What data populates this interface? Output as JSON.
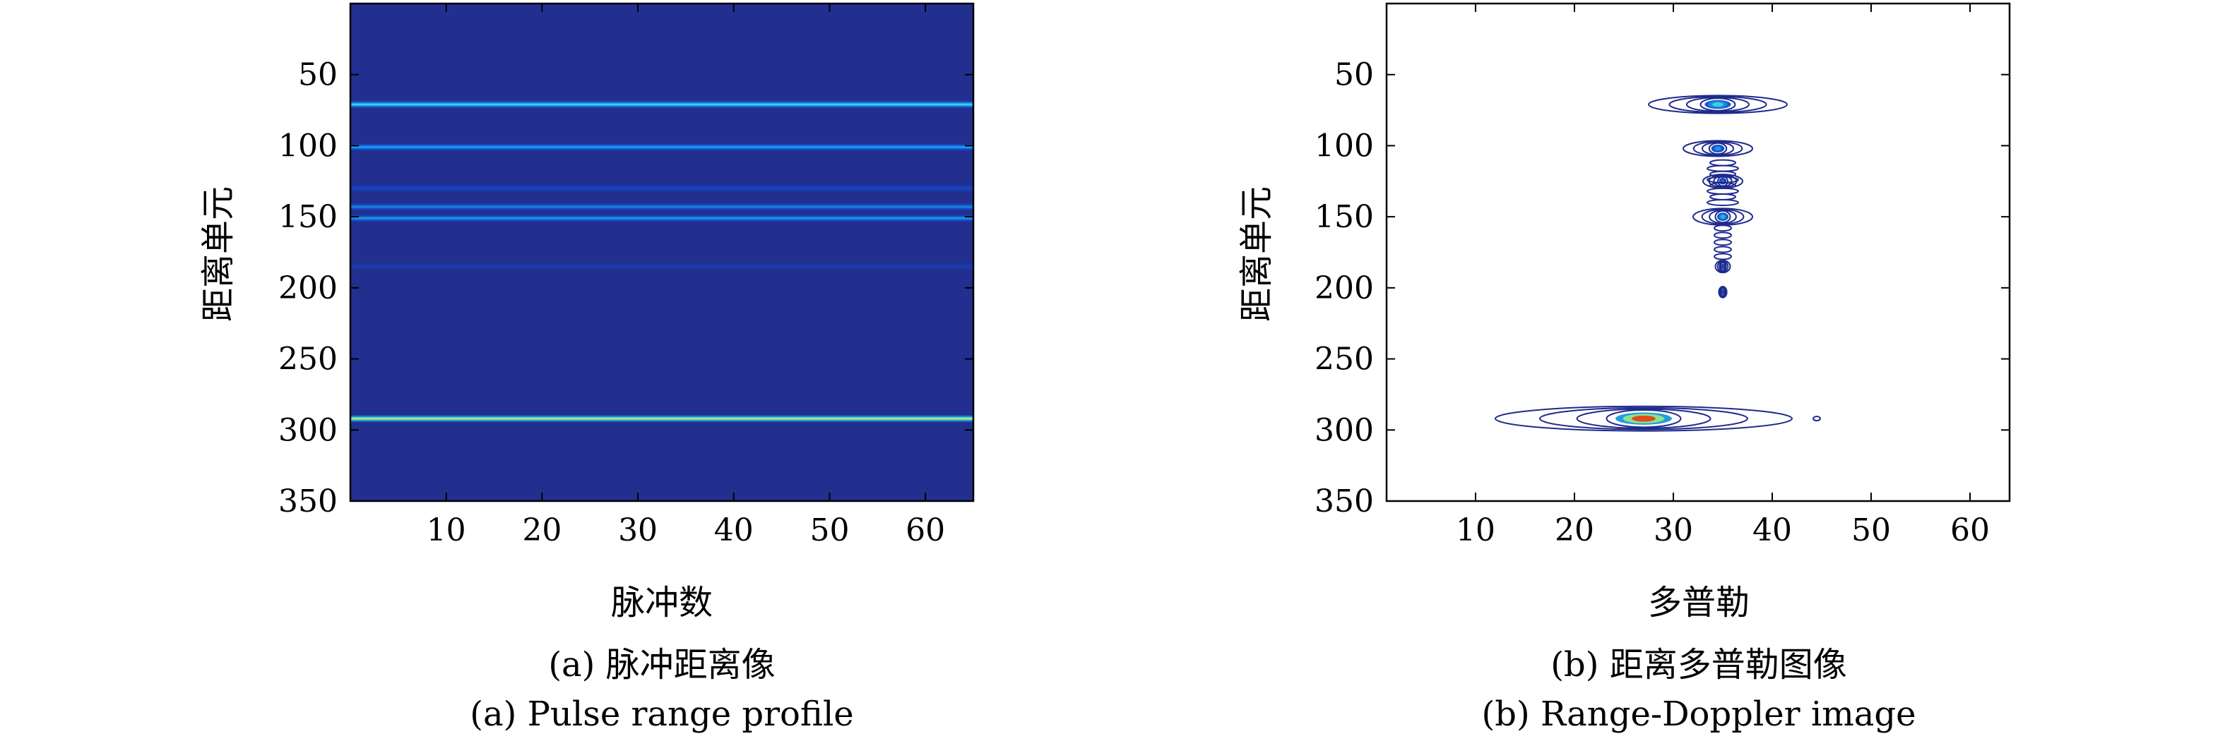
{
  "chart_data": [
    {
      "type": "heatmap",
      "panel": "a",
      "caption_cn": "(a) 脉冲距离像",
      "caption_en": "(a) Pulse range profile",
      "xlabel": "脉冲数",
      "ylabel": "距离单元",
      "xlim": [
        0,
        65
      ],
      "ylim": [
        350,
        0
      ],
      "xticks": [
        10,
        20,
        30,
        40,
        50,
        60
      ],
      "yticks": [
        50,
        100,
        150,
        200,
        250,
        300,
        350
      ],
      "background_color": "#232f8f",
      "bands": [
        {
          "y": 71,
          "intensity": 0.55
        },
        {
          "y": 101,
          "intensity": 0.42
        },
        {
          "y": 130,
          "intensity": 0.18
        },
        {
          "y": 143,
          "intensity": 0.35
        },
        {
          "y": 151,
          "intensity": 0.4
        },
        {
          "y": 185,
          "intensity": 0.1
        },
        {
          "y": 292,
          "intensity": 0.72
        }
      ]
    },
    {
      "type": "contour",
      "panel": "b",
      "caption_cn": "(b) 距离多普勒图像",
      "caption_en": "(b) Range-Doppler image",
      "xlabel": "多普勒",
      "ylabel": "距离单元",
      "xlim": [
        1,
        64
      ],
      "ylim": [
        350,
        0
      ],
      "xticks": [
        10,
        20,
        30,
        40,
        50,
        60
      ],
      "yticks": [
        50,
        100,
        150,
        200,
        250,
        300,
        350
      ],
      "contour_color": "#1f2a8c",
      "scatterers": [
        {
          "x": 34.5,
          "y": 71,
          "width": 14,
          "peak": 0.55
        },
        {
          "x": 34.5,
          "y": 102,
          "width": 7,
          "peak": 0.42
        },
        {
          "x": 35,
          "y": 125,
          "width": 4,
          "peak": 0.3
        },
        {
          "x": 35,
          "y": 150,
          "width": 6,
          "peak": 0.48
        },
        {
          "x": 35,
          "y": 185,
          "width": 1.5,
          "peak": 0.22
        },
        {
          "x": 35,
          "y": 203,
          "width": 0.8,
          "peak": 0.15
        },
        {
          "x": 27,
          "y": 292,
          "width": 30,
          "peak": 0.95
        }
      ]
    }
  ]
}
